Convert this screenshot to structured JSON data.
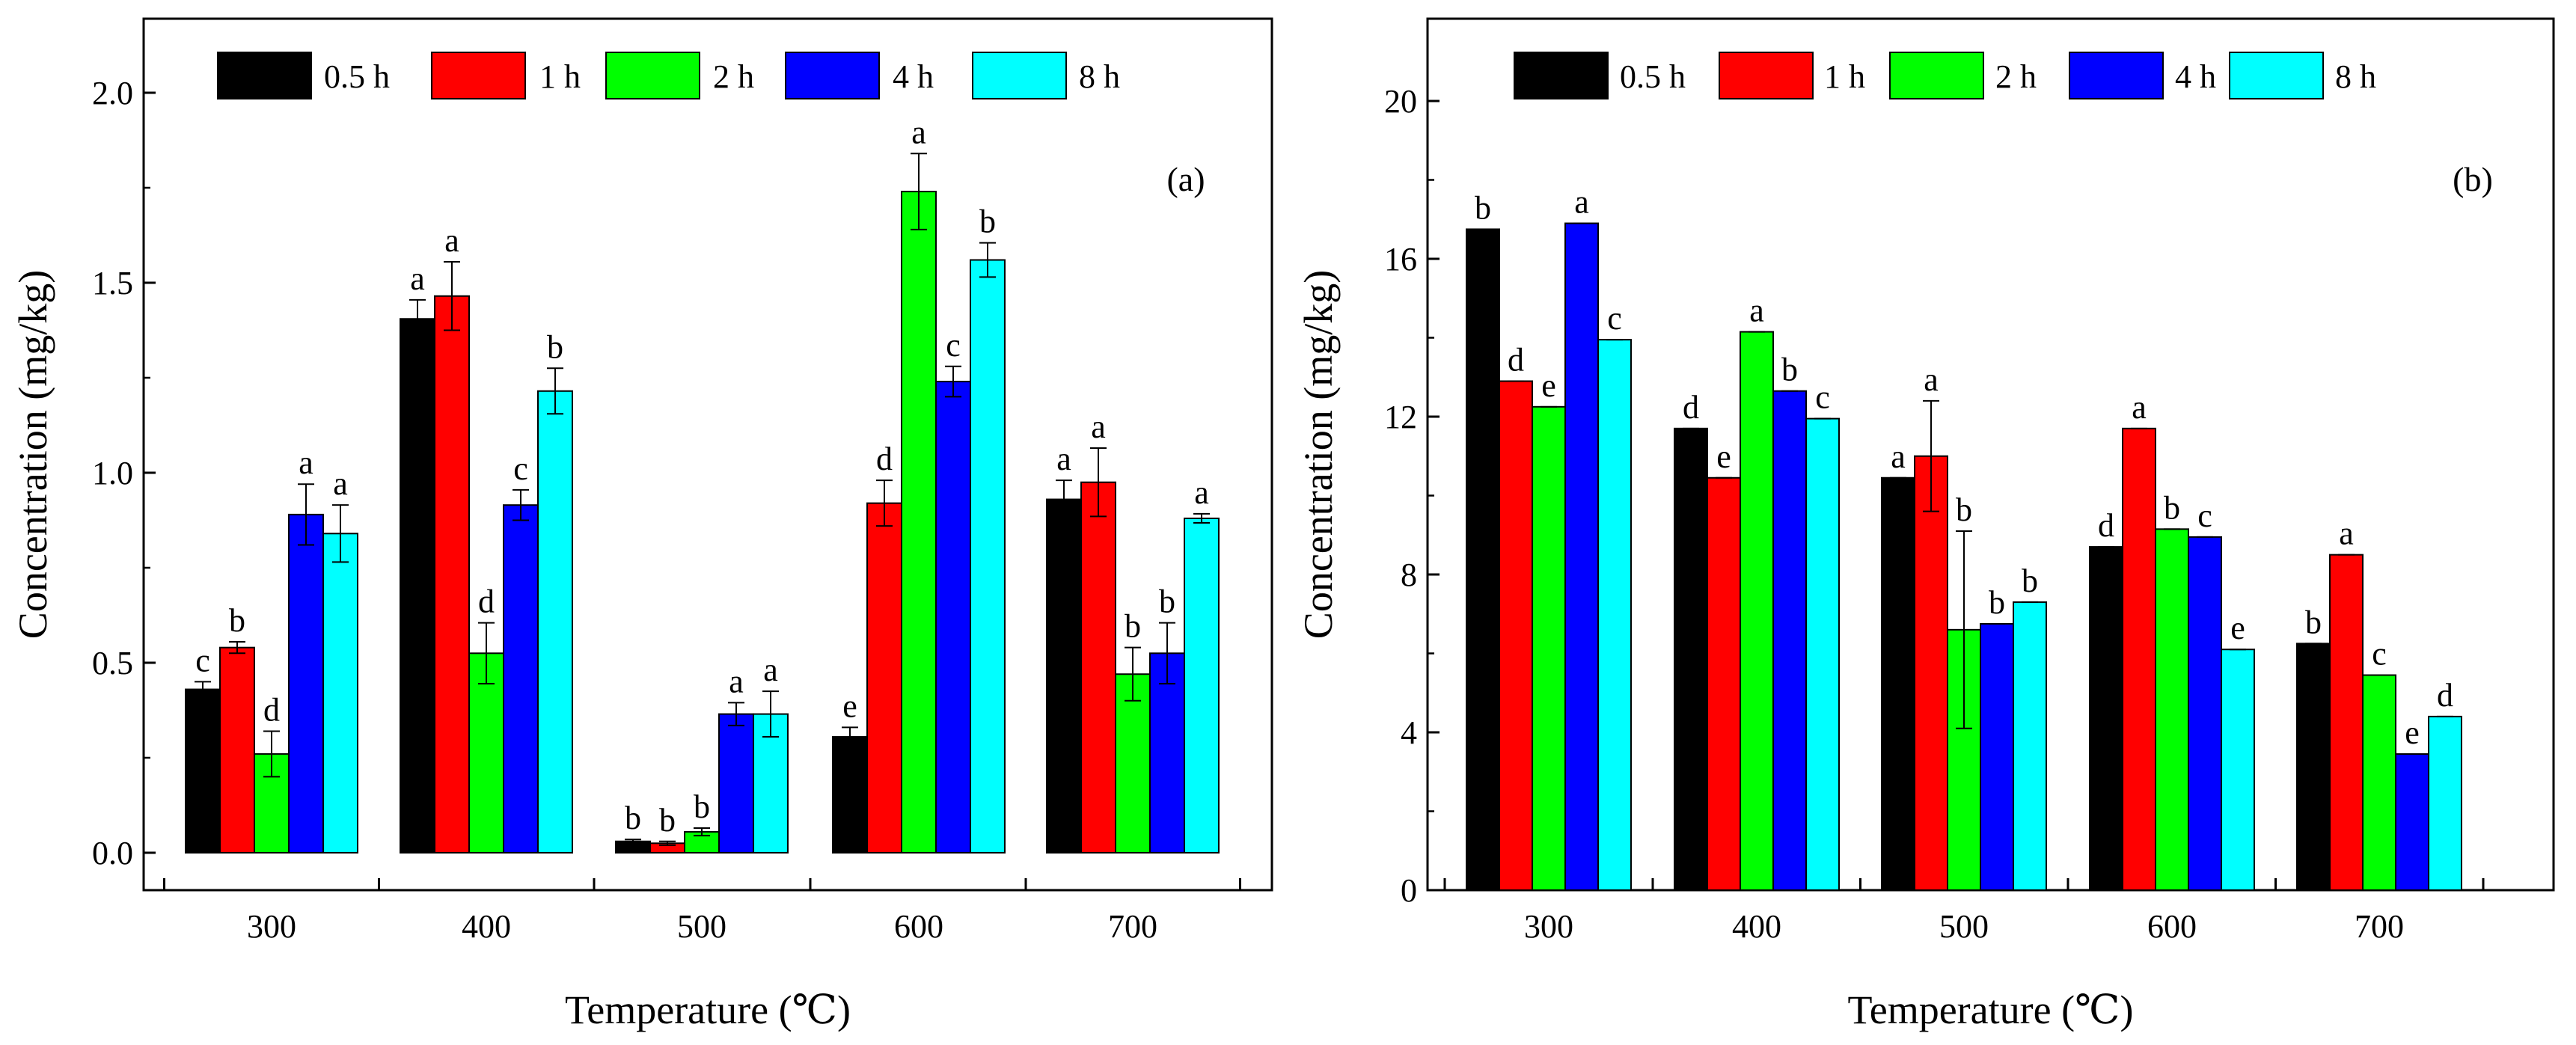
{
  "chart_data": [
    {
      "type": "bar",
      "panel_label": "(a)",
      "xlabel": "Temperature (℃)",
      "ylabel": "Concentration (mg/kg)",
      "categories": [
        "300",
        "400",
        "500",
        "600",
        "700"
      ],
      "ylim": [
        -0.1,
        2.2
      ],
      "yticks": [
        0.0,
        0.5,
        1.0,
        1.5,
        2.0
      ],
      "ytick_labels": [
        "0.0",
        "0.5",
        "1.0",
        "1.5",
        "2.0"
      ],
      "legend_position": "top-left",
      "series": [
        {
          "name": "0.5 h",
          "color": "#000000",
          "values": [
            0.43,
            1.405,
            0.03,
            0.305,
            0.93
          ],
          "errors": [
            0.02,
            0.05,
            0.005,
            0.025,
            0.05
          ],
          "letters": [
            "c",
            "a",
            "b",
            "e",
            "a"
          ]
        },
        {
          "name": "1 h",
          "color": "#ff0000",
          "values": [
            0.54,
            1.465,
            0.025,
            0.92,
            0.975
          ],
          "errors": [
            0.015,
            0.09,
            0.005,
            0.06,
            0.09
          ],
          "letters": [
            "b",
            "a",
            "b",
            "d",
            "a"
          ]
        },
        {
          "name": "2 h",
          "color": "#00ff00",
          "values": [
            0.26,
            0.525,
            0.055,
            1.74,
            0.47
          ],
          "errors": [
            0.06,
            0.08,
            0.01,
            0.1,
            0.07
          ],
          "letters": [
            "d",
            "d",
            "b",
            "a",
            "b"
          ]
        },
        {
          "name": "4 h",
          "color": "#0000ff",
          "values": [
            0.89,
            0.915,
            0.365,
            1.24,
            0.525
          ],
          "errors": [
            0.08,
            0.04,
            0.03,
            0.04,
            0.08
          ],
          "letters": [
            "a",
            "c",
            "a",
            "c",
            "b"
          ]
        },
        {
          "name": "8 h",
          "color": "#00ffff",
          "values": [
            0.84,
            1.215,
            0.365,
            1.56,
            0.88
          ],
          "errors": [
            0.075,
            0.06,
            0.06,
            0.045,
            0.012
          ],
          "letters": [
            "a",
            "b",
            "a",
            "b",
            "a"
          ]
        }
      ]
    },
    {
      "type": "bar",
      "panel_label": "(b)",
      "xlabel": "Temperature (℃)",
      "ylabel": "Concentration (mg/kg)",
      "categories": [
        "300",
        "400",
        "500",
        "600",
        "700"
      ],
      "ylim": [
        0,
        22
      ],
      "yticks": [
        0,
        4,
        8,
        12,
        16,
        20
      ],
      "ytick_labels": [
        "0",
        "4",
        "8",
        "12",
        "16",
        "20"
      ],
      "legend_position": "top-left",
      "series": [
        {
          "name": "0.5 h",
          "color": "#000000",
          "values": [
            16.75,
            11.7,
            10.45,
            8.7,
            6.25
          ],
          "errors": [
            0,
            0,
            0,
            0,
            0
          ],
          "letters": [
            "b",
            "d",
            "a",
            "d",
            "b"
          ]
        },
        {
          "name": "1 h",
          "color": "#ff0000",
          "values": [
            12.9,
            10.45,
            11.0,
            11.7,
            8.5
          ],
          "errors": [
            0,
            0,
            1.4,
            0,
            0
          ],
          "letters": [
            "d",
            "e",
            "a",
            "a",
            "a"
          ]
        },
        {
          "name": "2 h",
          "color": "#00ff00",
          "values": [
            12.25,
            14.15,
            6.6,
            9.15,
            5.45
          ],
          "errors": [
            0,
            0,
            2.5,
            0,
            0
          ],
          "letters": [
            "e",
            "a",
            "b",
            "b",
            "c"
          ]
        },
        {
          "name": "4 h",
          "color": "#0000ff",
          "values": [
            16.9,
            12.65,
            6.75,
            8.95,
            3.45
          ],
          "errors": [
            0,
            0,
            0,
            0,
            0
          ],
          "letters": [
            "a",
            "b",
            "b",
            "c",
            "e"
          ]
        },
        {
          "name": "8 h",
          "color": "#00ffff",
          "values": [
            13.95,
            11.95,
            7.3,
            6.1,
            4.4
          ],
          "errors": [
            0,
            0,
            0,
            0,
            0
          ],
          "letters": [
            "c",
            "c",
            "b",
            "e",
            "d"
          ]
        }
      ]
    }
  ]
}
